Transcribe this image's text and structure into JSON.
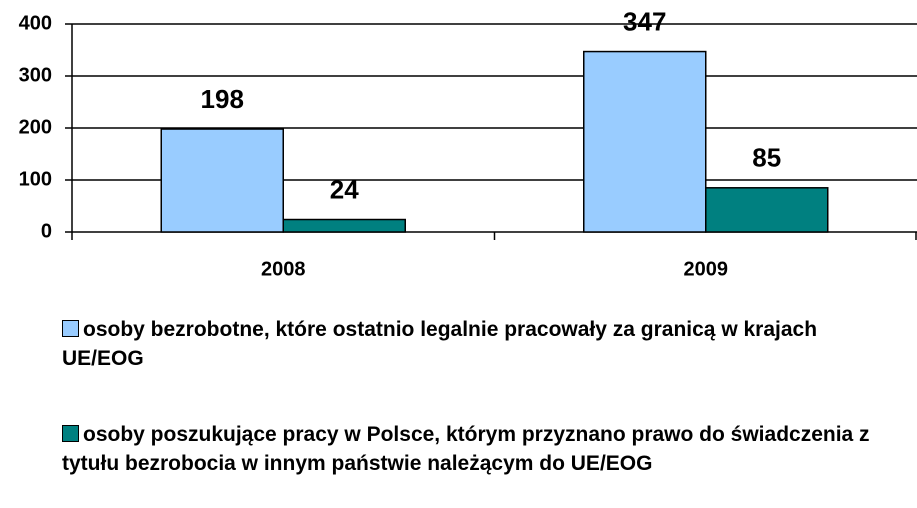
{
  "chart_data": {
    "type": "bar",
    "categories": [
      "2008",
      "2009"
    ],
    "series": [
      {
        "name": "osoby bezrobotne, które ostatnio legalnie pracowały za granicą w krajach UE/EOG",
        "color": "#99ccff",
        "values": [
          198,
          347
        ]
      },
      {
        "name": "osoby poszukujące pracy w Polsce, którym przyznano prawo do świadczenia z tytułu bezrobocia w innym państwie należącym do UE/EOG",
        "color": "#008080",
        "values": [
          24,
          85
        ]
      }
    ],
    "ylim": [
      0,
      400
    ],
    "yticks": [
      0,
      100,
      200,
      300,
      400
    ],
    "grid": true
  }
}
